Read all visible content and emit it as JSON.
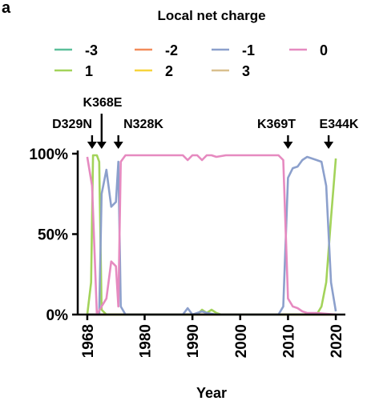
{
  "chart_data": {
    "type": "line",
    "panel_label": "a",
    "legend_title": "Local net charge",
    "xlabel": "Year",
    "ylabel": "",
    "xlim": [
      1966,
      2022
    ],
    "ylim": [
      0,
      100
    ],
    "x_ticks": [
      1968,
      1980,
      1990,
      2000,
      2010,
      2020
    ],
    "y_ticks": [
      {
        "value": 0,
        "label": "0%"
      },
      {
        "value": 50,
        "label": "50%"
      },
      {
        "value": 100,
        "label": "100%"
      }
    ],
    "annotations": [
      {
        "label": "D329N",
        "x": 1969
      },
      {
        "label": "K368E",
        "x": 1971
      },
      {
        "label": "N328K",
        "x": 1974.5
      },
      {
        "label": "K369T",
        "x": 2010
      },
      {
        "label": "E344K",
        "x": 2018.5
      }
    ],
    "series": [
      {
        "name": "-3",
        "color": "#5bbf9a",
        "points": [
          [
            1968,
            0
          ],
          [
            2020,
            0
          ]
        ]
      },
      {
        "name": "-2",
        "color": "#f28c5a",
        "points": [
          [
            1968,
            0
          ],
          [
            2020,
            0
          ]
        ]
      },
      {
        "name": "-1",
        "color": "#8ca0cc",
        "points": [
          [
            1968,
            0
          ],
          [
            1969,
            0
          ],
          [
            1970,
            0
          ],
          [
            1970.5,
            0
          ],
          [
            1971,
            75
          ],
          [
            1972,
            90
          ],
          [
            1973,
            67
          ],
          [
            1974,
            70
          ],
          [
            1974.5,
            95
          ],
          [
            1975,
            5
          ],
          [
            1976,
            0
          ],
          [
            1985,
            0
          ],
          [
            1988,
            0
          ],
          [
            1989,
            4
          ],
          [
            1990,
            0
          ],
          [
            1992,
            2
          ],
          [
            1993,
            1
          ],
          [
            1995,
            0
          ],
          [
            2007,
            0
          ],
          [
            2008,
            0
          ],
          [
            2009,
            5
          ],
          [
            2010,
            85
          ],
          [
            2011,
            91
          ],
          [
            2012,
            92
          ],
          [
            2013,
            96
          ],
          [
            2014,
            98
          ],
          [
            2015,
            97
          ],
          [
            2016,
            96
          ],
          [
            2017,
            95
          ],
          [
            2018,
            80
          ],
          [
            2019,
            20
          ],
          [
            2020,
            2
          ]
        ]
      },
      {
        "name": "0",
        "color": "#e68ac0",
        "points": [
          [
            1968,
            98
          ],
          [
            1969,
            80
          ],
          [
            1970,
            0
          ],
          [
            1971,
            5
          ],
          [
            1972,
            10
          ],
          [
            1973,
            33
          ],
          [
            1974,
            30
          ],
          [
            1974.5,
            5
          ],
          [
            1975,
            95
          ],
          [
            1976,
            99
          ],
          [
            1980,
            99
          ],
          [
            1985,
            99
          ],
          [
            1988,
            99
          ],
          [
            1989,
            96
          ],
          [
            1990,
            99
          ],
          [
            1991,
            99
          ],
          [
            1992,
            96
          ],
          [
            1993,
            99
          ],
          [
            1994,
            99
          ],
          [
            1995,
            98
          ],
          [
            1997,
            99
          ],
          [
            2000,
            99
          ],
          [
            2003,
            99
          ],
          [
            2005,
            99
          ],
          [
            2007,
            99
          ],
          [
            2008,
            99
          ],
          [
            2009,
            96
          ],
          [
            2010,
            10
          ],
          [
            2011,
            5
          ],
          [
            2012,
            4
          ],
          [
            2013,
            2
          ],
          [
            2014,
            1
          ],
          [
            2016,
            1
          ],
          [
            2020,
            0
          ]
        ]
      },
      {
        "name": "1",
        "color": "#a3d35a",
        "points": [
          [
            1968,
            0
          ],
          [
            1968.8,
            20
          ],
          [
            1969.2,
            99
          ],
          [
            1970,
            99
          ],
          [
            1970.5,
            95
          ],
          [
            1971,
            3
          ],
          [
            1972,
            0
          ],
          [
            1985,
            0
          ],
          [
            1991,
            0
          ],
          [
            1992,
            3
          ],
          [
            1993,
            1
          ],
          [
            1994,
            3
          ],
          [
            1995,
            1
          ],
          [
            1996,
            0
          ],
          [
            2015,
            0
          ],
          [
            2016,
            0
          ],
          [
            2017,
            5
          ],
          [
            2018,
            20
          ],
          [
            2019,
            60
          ],
          [
            2020,
            97
          ]
        ]
      },
      {
        "name": "2",
        "color": "#f7d43c",
        "points": [
          [
            1968,
            0
          ],
          [
            2020,
            0
          ]
        ]
      },
      {
        "name": "3",
        "color": "#d9c08e",
        "points": [
          [
            1968,
            0
          ],
          [
            2020,
            0
          ]
        ]
      }
    ]
  }
}
